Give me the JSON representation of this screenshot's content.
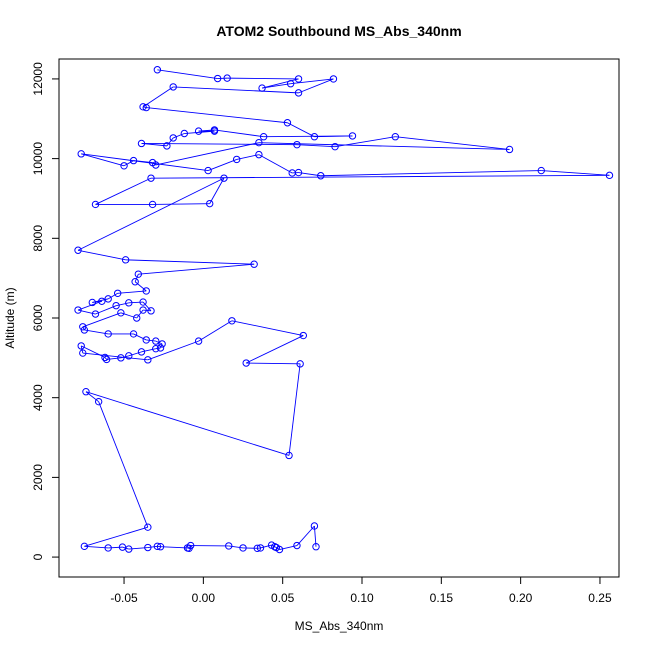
{
  "chart_data": {
    "type": "scatter",
    "title": "ATOM2 Southbound MS_Abs_340nm",
    "xlabel": "MS_Abs_340nm",
    "ylabel": "Altitude (m)",
    "xlim": [
      -0.091,
      0.262
    ],
    "ylim": [
      -500,
      12500
    ],
    "grid": false,
    "legend": "none",
    "x_ticks": [
      -0.05,
      0.0,
      0.05,
      0.1,
      0.15,
      0.2,
      0.25
    ],
    "x_tick_labels": [
      "-0.05",
      "0.00",
      "0.05",
      "0.10",
      "0.15",
      "0.20",
      "0.25"
    ],
    "y_ticks": [
      0,
      2000,
      4000,
      6000,
      8000,
      10000,
      12000
    ],
    "y_tick_labels": [
      "0",
      "2000",
      "4000",
      "6000",
      "8000",
      "10000",
      "12000"
    ],
    "series": [
      {
        "color": "#0000ff",
        "marker": "open-circle",
        "points": [
          [
            -0.029,
            12230
          ],
          [
            0.009,
            12010
          ],
          [
            0.015,
            12020
          ],
          [
            0.06,
            12000
          ],
          [
            0.037,
            11770
          ],
          [
            0.055,
            11880
          ],
          [
            0.082,
            12000
          ],
          [
            0.06,
            11650
          ],
          [
            -0.019,
            11800
          ],
          [
            -0.038,
            11300
          ],
          [
            -0.036,
            11280
          ],
          [
            0.053,
            10900
          ],
          [
            0.07,
            10550
          ],
          [
            0.094,
            10570
          ],
          [
            0.038,
            10550
          ],
          [
            0.007,
            10720
          ],
          [
            -0.003,
            10690
          ],
          [
            0.007,
            10690
          ],
          [
            -0.012,
            10630
          ],
          [
            -0.019,
            10520
          ],
          [
            -0.023,
            10320
          ],
          [
            -0.039,
            10380
          ],
          [
            0.059,
            10350
          ],
          [
            0.083,
            10300
          ],
          [
            0.121,
            10550
          ],
          [
            0.193,
            10230
          ],
          [
            0.035,
            10400
          ],
          [
            -0.03,
            9840
          ],
          [
            -0.032,
            9900
          ],
          [
            -0.044,
            9950
          ],
          [
            -0.05,
            9820
          ],
          [
            -0.077,
            10120
          ],
          [
            0.003,
            9700
          ],
          [
            0.021,
            9980
          ],
          [
            0.035,
            10100
          ],
          [
            0.056,
            9640
          ],
          [
            0.06,
            9650
          ],
          [
            0.074,
            9570
          ],
          [
            0.213,
            9700
          ],
          [
            0.256,
            9580
          ],
          [
            -0.033,
            9510
          ],
          [
            -0.068,
            8850
          ],
          [
            -0.032,
            8850
          ],
          [
            0.004,
            8870
          ],
          [
            0.013,
            9510
          ],
          [
            -0.079,
            7700
          ],
          [
            -0.049,
            7460
          ],
          [
            0.032,
            7350
          ],
          [
            -0.041,
            7100
          ],
          [
            -0.043,
            6910
          ],
          [
            -0.036,
            6680
          ],
          [
            -0.054,
            6620
          ],
          [
            -0.06,
            6480
          ],
          [
            -0.07,
            6390
          ],
          [
            -0.064,
            6420
          ],
          [
            -0.079,
            6200
          ],
          [
            -0.068,
            6100
          ],
          [
            -0.055,
            6310
          ],
          [
            -0.047,
            6380
          ],
          [
            -0.038,
            6400
          ],
          [
            -0.033,
            6180
          ],
          [
            -0.038,
            6200
          ],
          [
            -0.042,
            6000
          ],
          [
            -0.052,
            6130
          ],
          [
            -0.076,
            5780
          ],
          [
            -0.075,
            5700
          ],
          [
            -0.06,
            5600
          ],
          [
            -0.044,
            5600
          ],
          [
            -0.036,
            5450
          ],
          [
            -0.03,
            5420
          ],
          [
            -0.026,
            5350
          ],
          [
            -0.027,
            5250
          ],
          [
            -0.03,
            5230
          ],
          [
            -0.039,
            5150
          ],
          [
            -0.047,
            5050
          ],
          [
            -0.052,
            5000
          ],
          [
            -0.061,
            4960
          ],
          [
            -0.062,
            5010
          ],
          [
            -0.077,
            5300
          ],
          [
            -0.076,
            5120
          ],
          [
            -0.035,
            4950
          ],
          [
            -0.003,
            5420
          ],
          [
            0.018,
            5930
          ],
          [
            0.063,
            5560
          ],
          [
            0.027,
            4870
          ],
          [
            0.061,
            4850
          ],
          [
            0.054,
            2550
          ],
          [
            -0.074,
            4150
          ],
          [
            -0.066,
            3900
          ],
          [
            -0.035,
            750
          ],
          [
            -0.075,
            270
          ],
          [
            -0.06,
            230
          ],
          [
            -0.051,
            250
          ],
          [
            -0.047,
            200
          ],
          [
            -0.035,
            240
          ],
          [
            -0.029,
            270
          ],
          [
            -0.027,
            260
          ],
          [
            -0.01,
            230
          ],
          [
            -0.009,
            220
          ],
          [
            -0.008,
            290
          ],
          [
            0.016,
            280
          ],
          [
            0.025,
            230
          ],
          [
            0.034,
            220
          ],
          [
            0.036,
            230
          ],
          [
            0.043,
            300
          ],
          [
            0.045,
            260
          ],
          [
            0.046,
            240
          ],
          [
            0.048,
            190
          ],
          [
            0.059,
            290
          ],
          [
            0.07,
            780
          ],
          [
            0.071,
            260
          ]
        ]
      }
    ]
  }
}
